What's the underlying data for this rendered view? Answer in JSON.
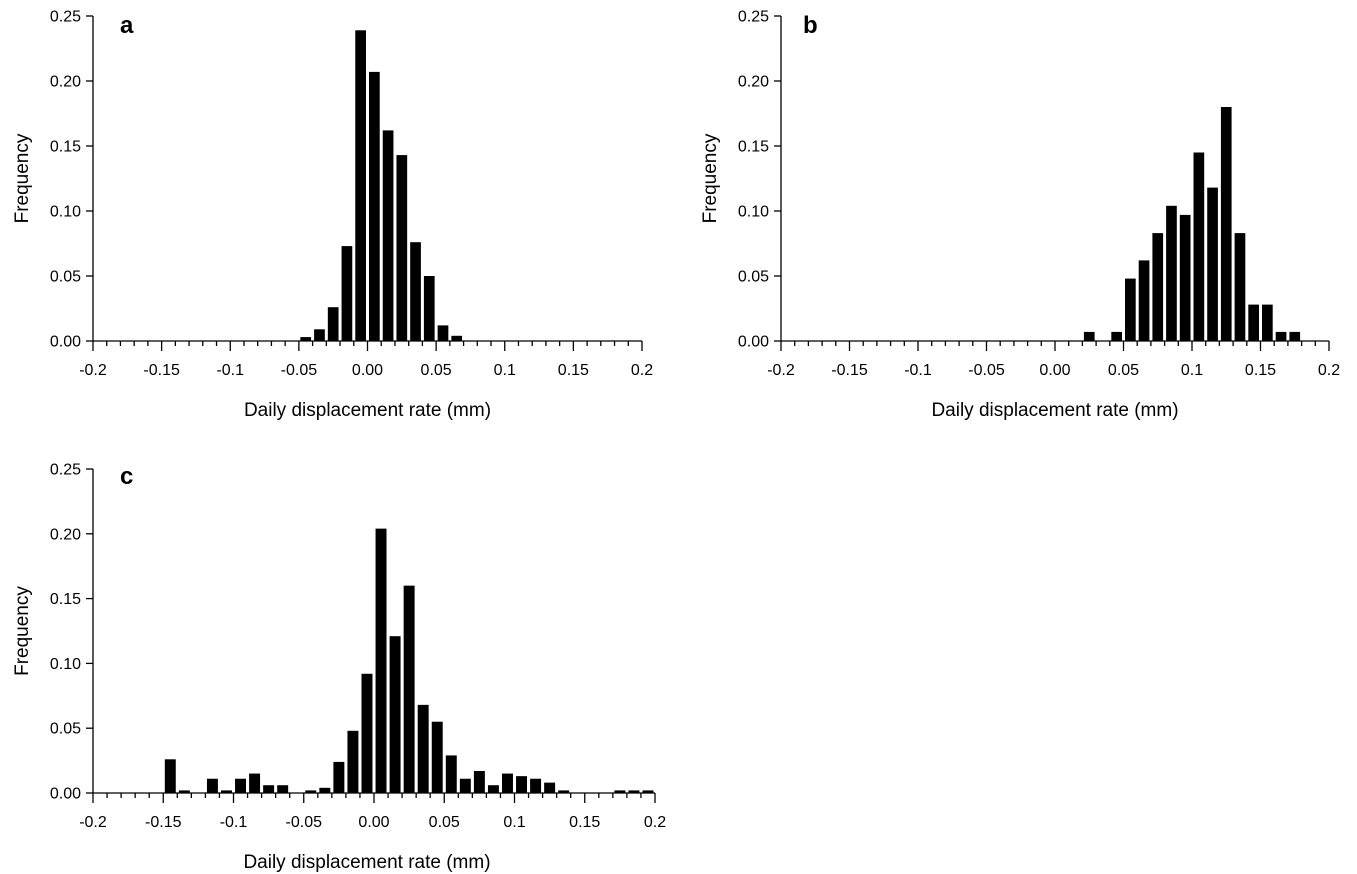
{
  "chart_data": [
    {
      "type": "bar",
      "panel_label": "a",
      "xlabel": "Daily displacement rate (mm)",
      "ylabel": "Frequency",
      "xlim": [
        -0.2,
        0.2
      ],
      "ylim": [
        0,
        0.25
      ],
      "x_tick_labels": [
        "-0.2",
        "-0.15",
        "-0.1",
        "-0.05",
        "0.00",
        "0.05",
        "0.1",
        "0.15",
        "0.2"
      ],
      "y_tick_labels": [
        "0.00",
        "0.05",
        "0.10",
        "0.15",
        "0.20",
        "0.25"
      ],
      "bin_width": 0.01,
      "x": [
        -0.045,
        -0.035,
        -0.025,
        -0.015,
        -0.005,
        0.005,
        0.015,
        0.025,
        0.035,
        0.045,
        0.055,
        0.065
      ],
      "values": [
        0.003,
        0.009,
        0.026,
        0.073,
        0.239,
        0.207,
        0.162,
        0.143,
        0.076,
        0.05,
        0.012,
        0.004
      ]
    },
    {
      "type": "bar",
      "panel_label": "b",
      "xlabel": "Daily displacement rate (mm)",
      "ylabel": "Frequency",
      "xlim": [
        -0.2,
        0.2
      ],
      "ylim": [
        0,
        0.25
      ],
      "x_tick_labels": [
        "-0.2",
        "-0.15",
        "-0.1",
        "-0.05",
        "0.00",
        "0.05",
        "0.1",
        "0.15",
        "0.2"
      ],
      "y_tick_labels": [
        "0.00",
        "0.05",
        "0.10",
        "0.15",
        "0.20",
        "0.25"
      ],
      "bin_width": 0.01,
      "x": [
        0.025,
        0.045,
        0.055,
        0.065,
        0.075,
        0.085,
        0.095,
        0.105,
        0.115,
        0.125,
        0.135,
        0.145,
        0.155,
        0.165,
        0.175
      ],
      "values": [
        0.007,
        0.007,
        0.048,
        0.062,
        0.083,
        0.104,
        0.097,
        0.145,
        0.118,
        0.18,
        0.083,
        0.028,
        0.028,
        0.007,
        0.007
      ]
    },
    {
      "type": "bar",
      "panel_label": "c",
      "xlabel": "Daily displacement rate (mm)",
      "ylabel": "Frequency",
      "xlim": [
        -0.2,
        0.2
      ],
      "ylim": [
        0,
        0.25
      ],
      "x_tick_labels": [
        "-0.2",
        "-0.15",
        "-0.1",
        "-0.05",
        "0.00",
        "0.05",
        "0.1",
        "0.15",
        "0.2"
      ],
      "y_tick_labels": [
        "0.00",
        "0.05",
        "0.10",
        "0.15",
        "0.20",
        "0.25"
      ],
      "bin_width": 0.01,
      "x": [
        -0.145,
        -0.135,
        -0.115,
        -0.105,
        -0.095,
        -0.085,
        -0.075,
        -0.065,
        -0.045,
        -0.035,
        -0.025,
        -0.015,
        -0.005,
        0.005,
        0.015,
        0.025,
        0.035,
        0.045,
        0.055,
        0.065,
        0.075,
        0.085,
        0.095,
        0.105,
        0.115,
        0.125,
        0.135,
        0.175,
        0.185,
        0.195
      ],
      "values": [
        0.026,
        0.002,
        0.011,
        0.002,
        0.011,
        0.015,
        0.006,
        0.006,
        0.002,
        0.004,
        0.024,
        0.048,
        0.092,
        0.204,
        0.121,
        0.16,
        0.068,
        0.055,
        0.029,
        0.011,
        0.017,
        0.006,
        0.015,
        0.013,
        0.011,
        0.008,
        0.002,
        0.002,
        0.002,
        0.002
      ]
    }
  ]
}
